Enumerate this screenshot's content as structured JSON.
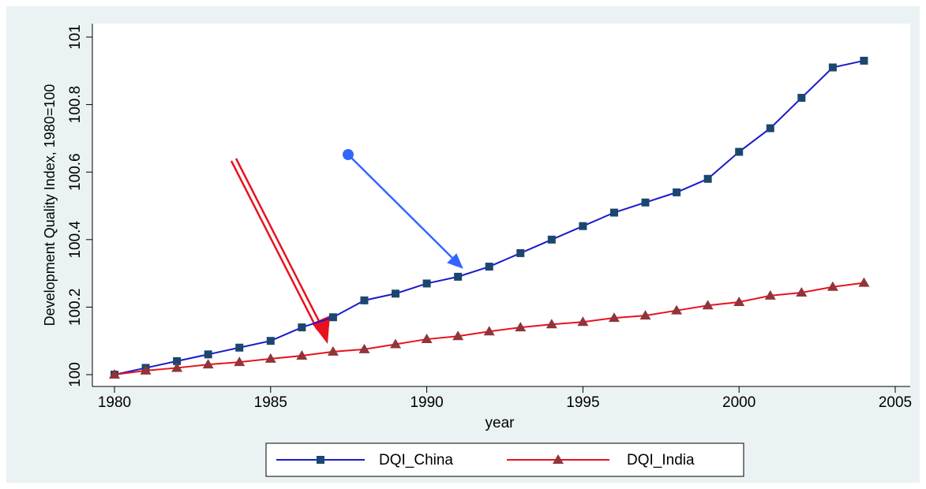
{
  "chart_data": {
    "type": "line",
    "x_label": "year",
    "y_label": "Development Quality Index, 1980=100",
    "x": [
      1980,
      1981,
      1982,
      1983,
      1984,
      1985,
      1986,
      1987,
      1988,
      1989,
      1990,
      1991,
      1992,
      1993,
      1994,
      1995,
      1996,
      1997,
      1998,
      1999,
      2000,
      2001,
      2002,
      2003,
      2004
    ],
    "series": [
      {
        "name": "DQI_China",
        "color": "#1a1acc",
        "marker": "square",
        "marker_color": "#1a476f",
        "values": [
          100,
          100.02,
          100.04,
          100.06,
          100.08,
          100.1,
          100.14,
          100.17,
          100.22,
          100.24,
          100.27,
          100.29,
          100.32,
          100.36,
          100.4,
          100.44,
          100.48,
          100.51,
          100.54,
          100.58,
          100.66,
          100.73,
          100.82,
          100.91,
          100.93
        ]
      },
      {
        "name": "DQI_India",
        "color": "#e8121e",
        "marker": "triangle",
        "marker_color": "#90353b",
        "values": [
          100,
          100.012,
          100.02,
          100.03,
          100.037,
          100.047,
          100.056,
          100.068,
          100.075,
          100.09,
          100.105,
          100.114,
          100.128,
          100.14,
          100.149,
          100.156,
          100.168,
          100.175,
          100.19,
          100.205,
          100.215,
          100.234,
          100.243,
          100.26,
          100.272
        ]
      }
    ],
    "xlim": [
      1980,
      2005
    ],
    "xticks": [
      1980,
      1985,
      1990,
      1995,
      2000,
      2005
    ],
    "ylim": [
      100,
      101
    ],
    "yticks": [
      100,
      100.2,
      100.4,
      100.6,
      100.8,
      101
    ],
    "grid": false
  }
}
